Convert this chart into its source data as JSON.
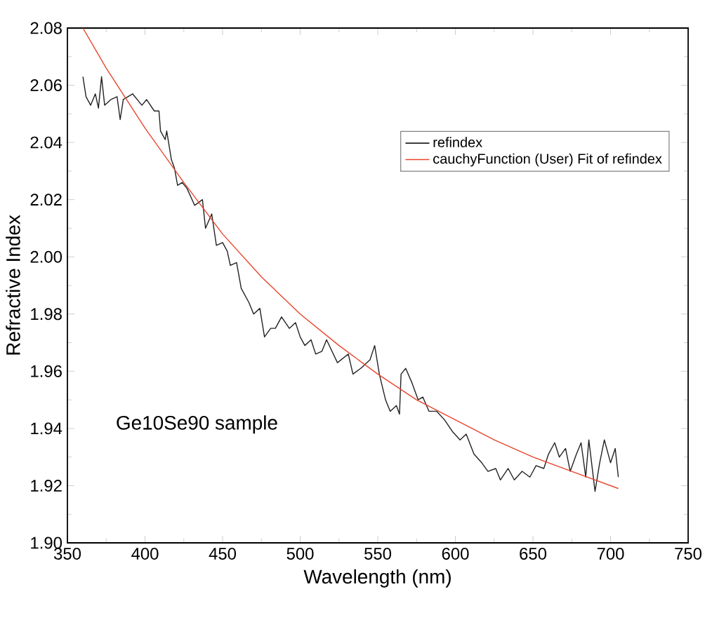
{
  "chart_data": {
    "type": "line",
    "xlabel": "Wavelength (nm)",
    "ylabel": "Refractive Index",
    "xlim": [
      350,
      750
    ],
    "ylim": [
      1.9,
      2.08
    ],
    "xticks": [
      350,
      400,
      450,
      500,
      550,
      600,
      650,
      700,
      750
    ],
    "yticks": [
      {
        "value": 1.9,
        "label": "1.90"
      },
      {
        "value": 1.92,
        "label": "1.92"
      },
      {
        "value": 1.94,
        "label": "1.94"
      },
      {
        "value": 1.96,
        "label": "1.96"
      },
      {
        "value": 1.98,
        "label": "1.98"
      },
      {
        "value": 2.0,
        "label": "2.00"
      },
      {
        "value": 2.02,
        "label": "2.02"
      },
      {
        "value": 2.04,
        "label": "2.04"
      },
      {
        "value": 2.06,
        "label": "2.06"
      },
      {
        "value": 2.08,
        "label": "2.08"
      }
    ],
    "legend": "top right",
    "annotations": [
      "Ge10Se90 sample"
    ],
    "series": [
      {
        "name": "refindex",
        "color": "#222222",
        "x": [
          360,
          362,
          365,
          368,
          370,
          372,
          374,
          378,
          382,
          384,
          386,
          392,
          398,
          401,
          406,
          409,
          410,
          413,
          414,
          417,
          419,
          421,
          424,
          427,
          432,
          437,
          439,
          443,
          446,
          450,
          453,
          455,
          459,
          462,
          467,
          470,
          474,
          477,
          481,
          484,
          488,
          493,
          497,
          500,
          503,
          507,
          510,
          514,
          517,
          524,
          531,
          534,
          539,
          545,
          548,
          551,
          555,
          558,
          562,
          564,
          565,
          568,
          572,
          576,
          579,
          583,
          588,
          593,
          598,
          603,
          607,
          612,
          617,
          621,
          626,
          629,
          634,
          638,
          643,
          648,
          652,
          657,
          660,
          664,
          667,
          671,
          674,
          678,
          681,
          684,
          686,
          690,
          693,
          696,
          700,
          703,
          705
        ],
        "values": [
          2.063,
          2.056,
          2.053,
          2.057,
          2.052,
          2.063,
          2.053,
          2.055,
          2.056,
          2.048,
          2.055,
          2.057,
          2.053,
          2.055,
          2.051,
          2.051,
          2.044,
          2.041,
          2.044,
          2.034,
          2.031,
          2.025,
          2.026,
          2.024,
          2.018,
          2.02,
          2.01,
          2.015,
          2.004,
          2.005,
          2.002,
          1.997,
          1.998,
          1.989,
          1.984,
          1.98,
          1.982,
          1.972,
          1.975,
          1.975,
          1.979,
          1.975,
          1.977,
          1.972,
          1.969,
          1.971,
          1.966,
          1.967,
          1.971,
          1.963,
          1.966,
          1.959,
          1.961,
          1.964,
          1.969,
          1.959,
          1.95,
          1.946,
          1.948,
          1.945,
          1.959,
          1.961,
          1.956,
          1.95,
          1.951,
          1.946,
          1.946,
          1.943,
          1.939,
          1.936,
          1.938,
          1.931,
          1.928,
          1.925,
          1.926,
          1.922,
          1.926,
          1.922,
          1.925,
          1.923,
          1.927,
          1.926,
          1.931,
          1.935,
          1.93,
          1.933,
          1.925,
          1.931,
          1.935,
          1.923,
          1.936,
          1.918,
          1.928,
          1.936,
          1.928,
          1.933,
          1.923
        ]
      },
      {
        "name": "cauchyFunction (User) Fit of refindex",
        "color": "#e8452c",
        "x": [
          360,
          375,
          400,
          425,
          450,
          475,
          500,
          525,
          550,
          575,
          600,
          625,
          650,
          675,
          705
        ],
        "values": [
          2.08,
          2.066,
          2.045,
          2.026,
          2.008,
          1.993,
          1.98,
          1.969,
          1.959,
          1.95,
          1.943,
          1.936,
          1.93,
          1.925,
          1.919
        ]
      }
    ]
  }
}
